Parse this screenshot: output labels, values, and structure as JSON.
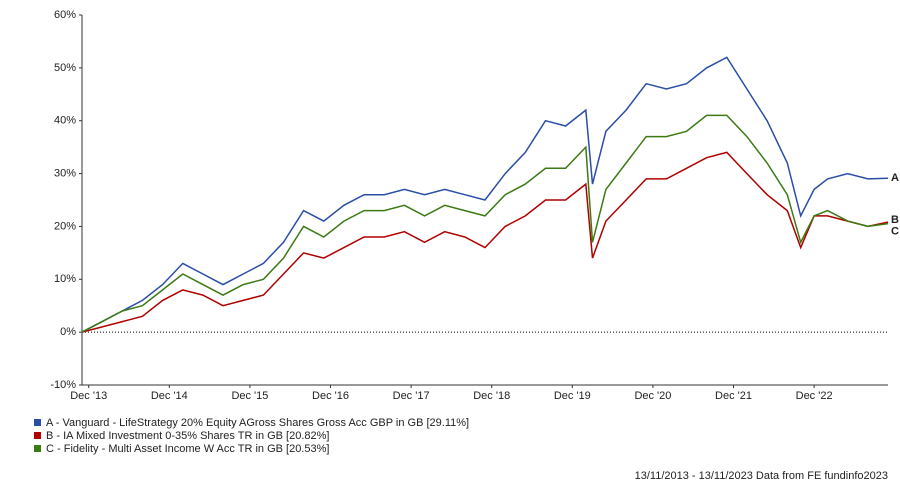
{
  "chart_data": {
    "type": "line",
    "x": [
      "2013-11",
      "2014-02",
      "2014-05",
      "2014-08",
      "2014-11",
      "2015-02",
      "2015-05",
      "2015-08",
      "2015-11",
      "2016-02",
      "2016-05",
      "2016-08",
      "2016-11",
      "2017-02",
      "2017-05",
      "2017-08",
      "2017-11",
      "2018-02",
      "2018-05",
      "2018-08",
      "2018-11",
      "2019-02",
      "2019-05",
      "2019-08",
      "2019-11",
      "2020-02",
      "2020-03",
      "2020-05",
      "2020-08",
      "2020-11",
      "2021-02",
      "2021-05",
      "2021-08",
      "2021-11",
      "2022-02",
      "2022-05",
      "2022-08",
      "2022-10",
      "2022-12",
      "2023-02",
      "2023-05",
      "2023-08",
      "2023-11"
    ],
    "series": [
      {
        "name": "A - Vanguard - LifeStrategy 20% Equity AGross Shares Gross Acc GBP in GB [29.11%]",
        "end_label": "A",
        "color": "#2a4ea6",
        "values": [
          0,
          2,
          4,
          6,
          9,
          13,
          11,
          9,
          11,
          13,
          17,
          23,
          21,
          24,
          26,
          26,
          27,
          26,
          27,
          26,
          25,
          30,
          34,
          40,
          39,
          42,
          28,
          38,
          42,
          47,
          46,
          47,
          50,
          52,
          46,
          40,
          32,
          22,
          27,
          29,
          30,
          29,
          29.11
        ]
      },
      {
        "name": "B - IA Mixed Investment 0-35% Shares TR in GB [20.82%]",
        "end_label": "B",
        "color": "#b00000",
        "values": [
          0,
          1,
          2,
          3,
          6,
          8,
          7,
          5,
          6,
          7,
          11,
          15,
          14,
          16,
          18,
          18,
          19,
          17,
          19,
          18,
          16,
          20,
          22,
          25,
          25,
          28,
          14,
          21,
          25,
          29,
          29,
          31,
          33,
          34,
          30,
          26,
          23,
          16,
          22,
          22,
          21,
          20,
          20.82
        ]
      },
      {
        "name": "C - Fidelity - Multi Asset Income W Acc TR in GB [20.53%]",
        "end_label": "C",
        "color": "#3c7a14",
        "values": [
          0,
          2,
          4,
          5,
          8,
          11,
          9,
          7,
          9,
          10,
          14,
          20,
          18,
          21,
          23,
          23,
          24,
          22,
          24,
          23,
          22,
          26,
          28,
          31,
          31,
          35,
          17,
          27,
          32,
          37,
          37,
          38,
          41,
          41,
          37,
          32,
          26,
          17,
          22,
          23,
          21,
          20,
          20.53
        ]
      }
    ],
    "xlim": [
      "2013-11",
      "2023-11"
    ],
    "xticks": [
      {
        "value": "2013-12",
        "label": "Dec '13"
      },
      {
        "value": "2014-12",
        "label": "Dec '14"
      },
      {
        "value": "2015-12",
        "label": "Dec '15"
      },
      {
        "value": "2016-12",
        "label": "Dec '16"
      },
      {
        "value": "2017-12",
        "label": "Dec '17"
      },
      {
        "value": "2018-12",
        "label": "Dec '18"
      },
      {
        "value": "2019-12",
        "label": "Dec '19"
      },
      {
        "value": "2020-12",
        "label": "Dec '20"
      },
      {
        "value": "2021-12",
        "label": "Dec '21"
      },
      {
        "value": "2022-12",
        "label": "Dec '22"
      }
    ],
    "ylim": [
      -10,
      60
    ],
    "yticks": [
      {
        "value": -10,
        "label": "-10%"
      },
      {
        "value": 0,
        "label": "0%"
      },
      {
        "value": 10,
        "label": "10%"
      },
      {
        "value": 20,
        "label": "20%"
      },
      {
        "value": 30,
        "label": "30%"
      },
      {
        "value": 40,
        "label": "40%"
      },
      {
        "value": 50,
        "label": "50%"
      },
      {
        "value": 60,
        "label": "60%"
      }
    ],
    "zero_line": true,
    "source": "13/11/2013 - 13/11/2023 Data from FE fundinfo2023"
  }
}
